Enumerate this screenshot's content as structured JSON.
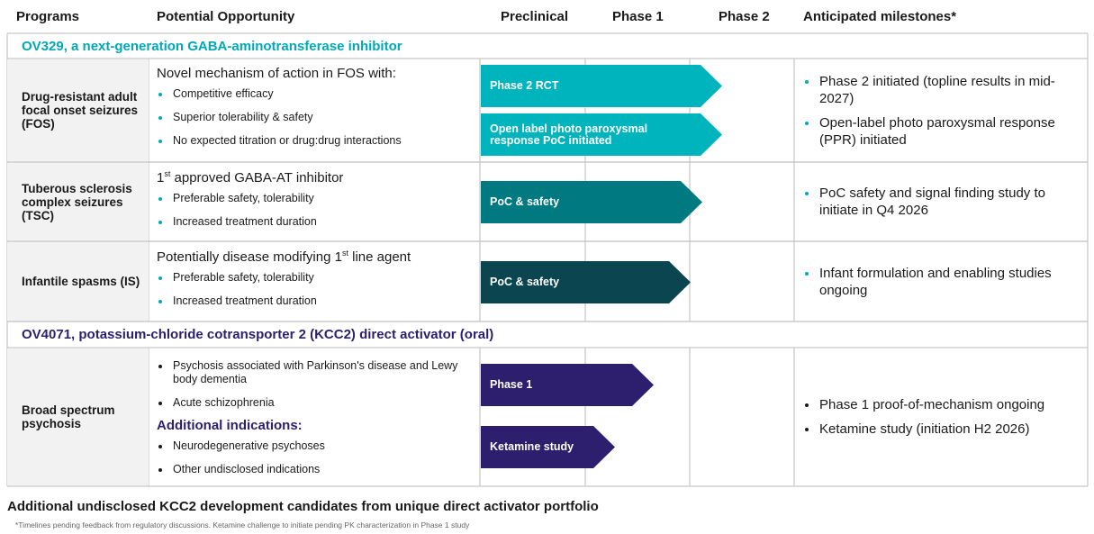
{
  "header": {
    "programs": "Programs",
    "opportunity": "Potential Opportunity",
    "preclinical": "Preclinical",
    "phase1": "Phase 1",
    "phase2": "Phase 2",
    "milestones": "Anticipated milestones*"
  },
  "sections": [
    {
      "title": "OV329, a next-generation GABA-aminotransferase inhibitor",
      "color": "#00a9b5",
      "rows": [
        {
          "program": "Drug-resistant adult focal onset seizures (FOS)",
          "intro": {
            "before": "Novel mechanism of action in FOS with:"
          },
          "bullets": [
            "Competitive efficacy",
            "Superior tolerability & safety",
            "No expected titration or drug:drug interactions"
          ],
          "arrows": [
            "Phase 2 RCT",
            "Open label photo paroxysmal response PoC initiated"
          ],
          "milestones": [
            "Phase 2 initiated (topline results in mid-2027)",
            "Open-label photo paroxysmal response (PPR) initiated"
          ]
        },
        {
          "program": "Tuberous sclerosis complex seizures (TSC)",
          "intro": {
            "before": "1",
            "sup": "st",
            "after": " approved GABA-AT inhibitor"
          },
          "bullets": [
            "Preferable safety, tolerability",
            "Increased treatment duration"
          ],
          "arrows": [
            "PoC & safety"
          ],
          "milestones": [
            "PoC safety and signal finding study to initiate in Q4 2026"
          ]
        },
        {
          "program": "Infantile spasms (IS)",
          "intro": {
            "before": "Potentially disease modifying 1",
            "sup": "st",
            "after": " line agent"
          },
          "bullets": [
            "Preferable safety, tolerability",
            "Increased treatment duration"
          ],
          "arrows": [
            "PoC & safety"
          ],
          "milestones": [
            "Infant formulation and enabling studies ongoing"
          ]
        }
      ]
    },
    {
      "title": "OV4071, potassium-chloride cotransporter 2 (KCC2) direct activator (oral)",
      "color": "#2d1f6e",
      "rows": [
        {
          "program": "Broad spectrum psychosis",
          "bullets": [
            "Psychosis associated with Parkinson's disease and Lewy body dementia",
            "Acute schizophrenia"
          ],
          "subheading": "Additional indications:",
          "more_bullets": [
            "Neurodegenerative psychoses",
            "Other undisclosed indications"
          ],
          "arrows": [
            "Phase 1",
            "Ketamine study"
          ],
          "milestones": [
            "Phase 1 proof-of-mechanism ongoing",
            "Ketamine study (initiation H2 2026)"
          ]
        }
      ]
    }
  ],
  "footer": {
    "note": "Additional undisclosed KCC2 development candidates from unique direct activator portfolio",
    "footnote": "*Timelines pending feedback from regulatory discussions. Ketamine challenge to initiate pending PK characterization in Phase 1 study"
  }
}
